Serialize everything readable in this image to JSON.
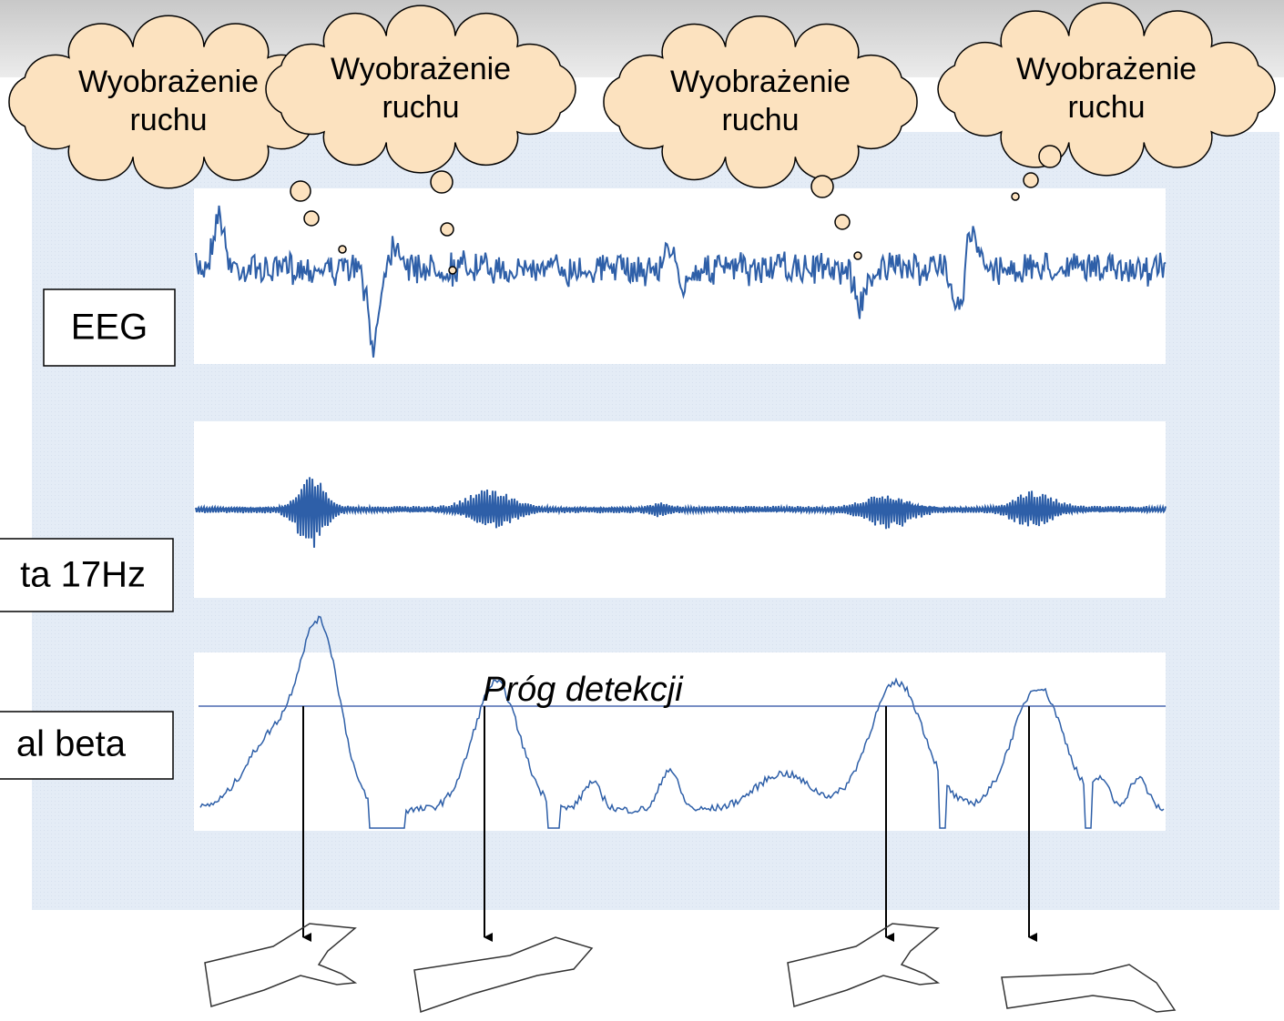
{
  "clouds": [
    {
      "lines": [
        "Wyobrażenie",
        "ruchu"
      ]
    },
    {
      "lines": [
        "Wyobrażenie",
        "ruchu"
      ]
    },
    {
      "lines": [
        "Wyobrażenie",
        "ruchu"
      ]
    },
    {
      "lines": [
        "Wyobrażenie",
        "ruchu"
      ]
    }
  ],
  "labels": {
    "eeg": "EEG",
    "band": "ta 17Hz",
    "envelope": "al beta"
  },
  "threshold": "Próg detekcji"
}
